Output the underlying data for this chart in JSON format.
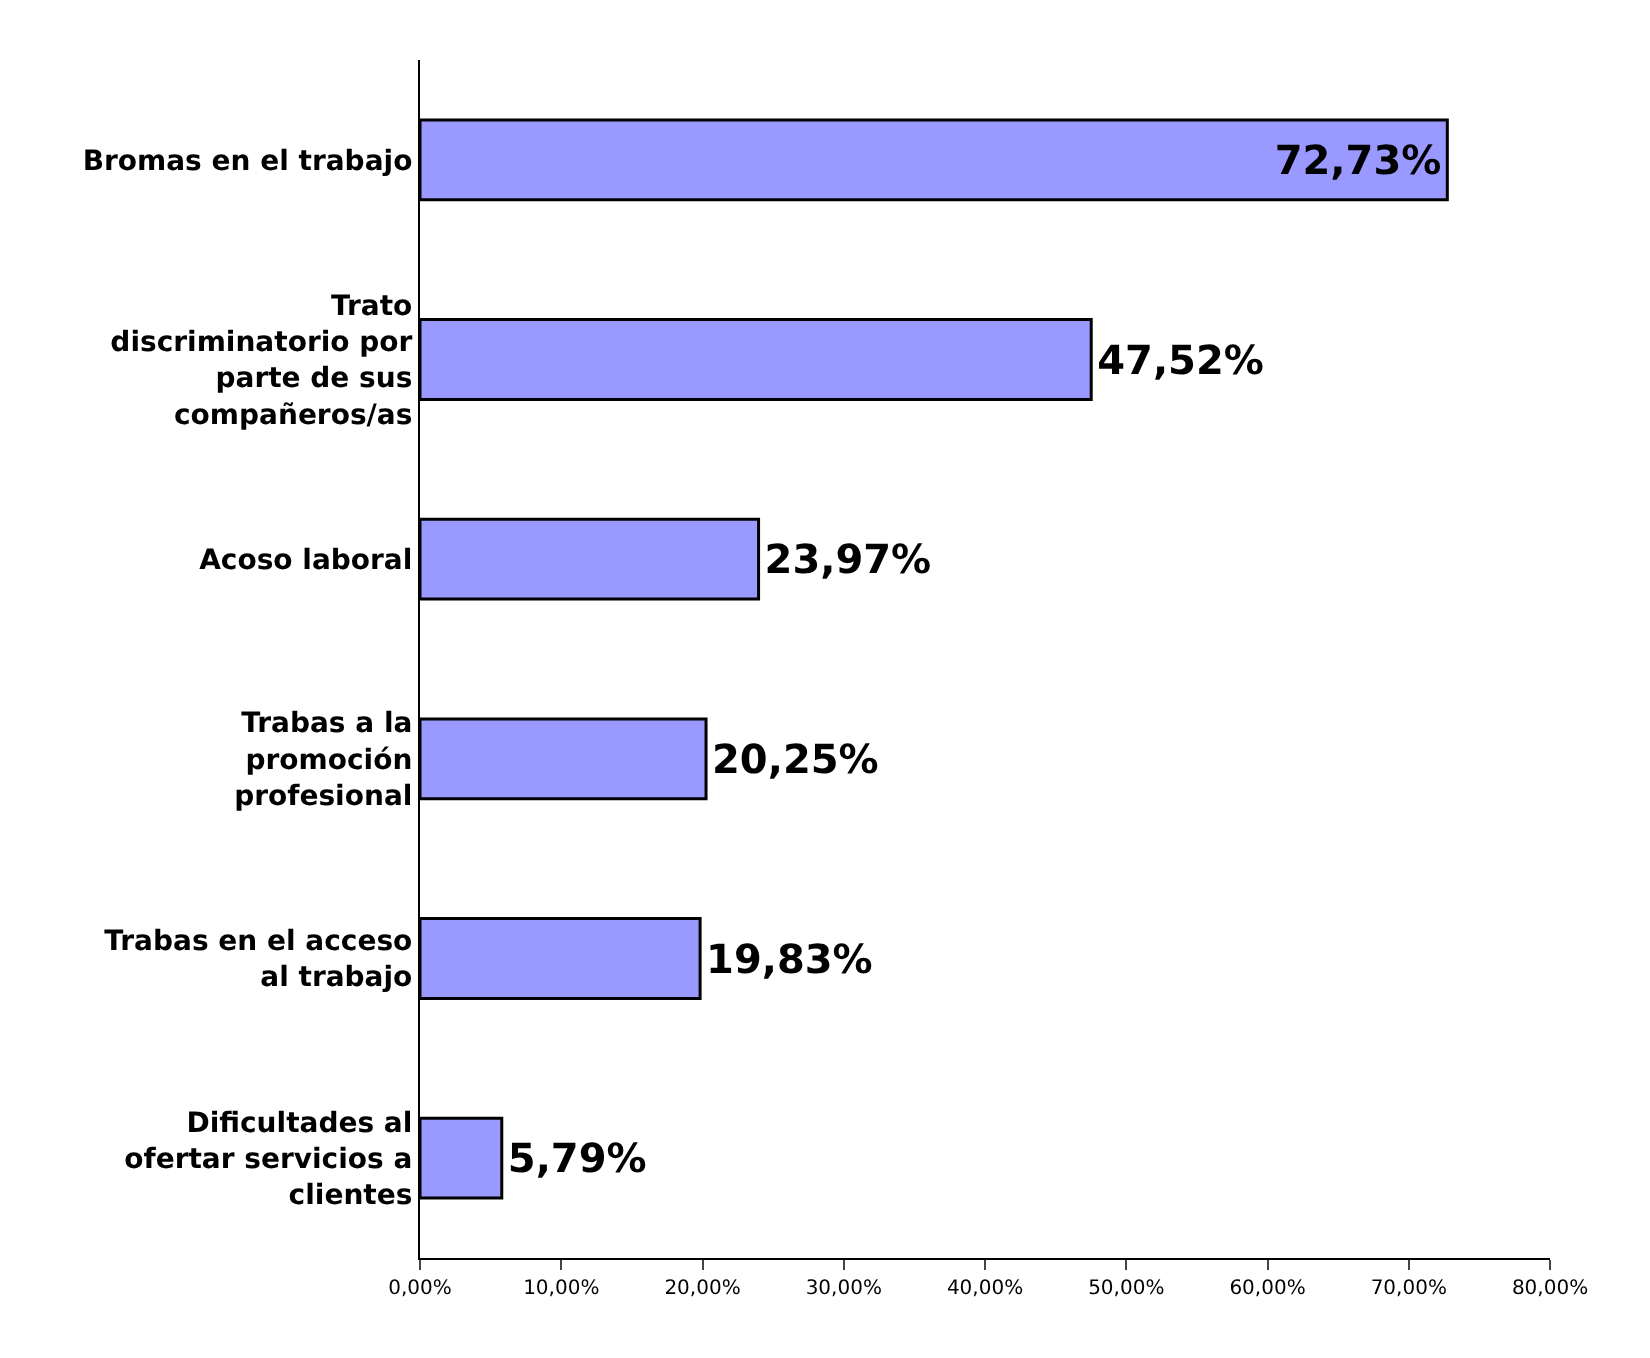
{
  "chart_data": {
    "type": "bar",
    "orientation": "horizontal",
    "categories": [
      "Bromas en el trabajo",
      "Trato discriminatorio por parte de sus compañeros/as",
      "Acoso laboral",
      "Trabas a la promoción profesional",
      "Trabas en el acceso al trabajo",
      "Dificultades al ofertar servicios a clientes"
    ],
    "values": [
      72.73,
      47.52,
      23.97,
      20.25,
      19.83,
      5.79
    ],
    "value_labels": [
      "72,73%",
      "47,52%",
      "23,97%",
      "20,25%",
      "19,83%",
      "5,79%"
    ],
    "color": "#9999ff",
    "xlim": [
      0,
      80
    ],
    "xticks": [
      {
        "value": 0,
        "label": "0,00%"
      },
      {
        "value": 10,
        "label": "10,00%"
      },
      {
        "value": 20,
        "label": "20,00%"
      },
      {
        "value": 30,
        "label": "30,00%"
      },
      {
        "value": 40,
        "label": "40,00%"
      },
      {
        "value": 50,
        "label": "50,00%"
      },
      {
        "value": 60,
        "label": "60,00%"
      },
      {
        "value": 70,
        "label": "70,00%"
      },
      {
        "value": 80,
        "label": "80,00%"
      }
    ],
    "legend": false
  }
}
